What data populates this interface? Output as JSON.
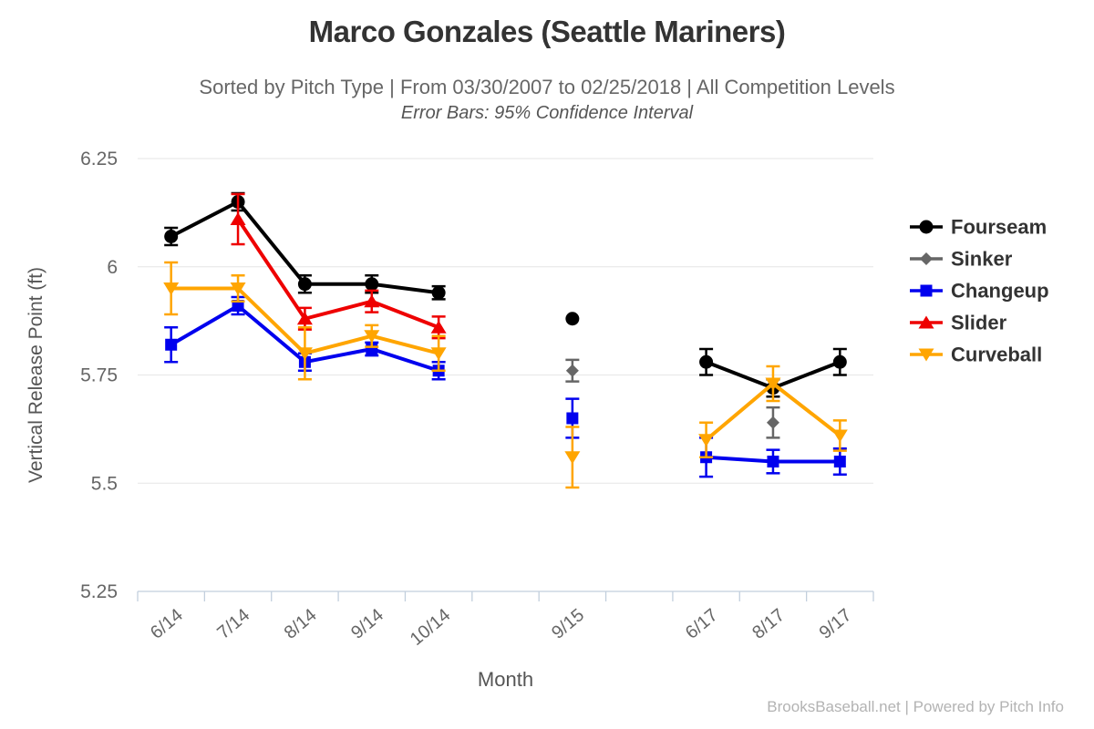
{
  "footer": {
    "credit": "BrooksBaseball.net | Powered by Pitch Info"
  },
  "chart_data": {
    "type": "line",
    "title": "Marco Gonzales (Seattle Mariners)",
    "subtitle": "Sorted by Pitch Type | From 03/30/2007 to 02/25/2018 | All Competition Levels",
    "note": "Error Bars: 95% Confidence Interval",
    "xlabel": "Month",
    "ylabel": "Vertical Release Point (ft)",
    "ylim": [
      5.25,
      6.25
    ],
    "yticks": [
      6.25,
      6.0,
      5.75,
      5.5,
      5.25
    ],
    "ytick_labels": [
      "6.25",
      "6",
      "5.75",
      "5.5",
      "5.25"
    ],
    "categories": [
      "6/14",
      "7/14",
      "8/14",
      "9/14",
      "10/14",
      "",
      "9/15",
      "",
      "6/17",
      "8/17",
      "9/17"
    ],
    "grid": "horizontal",
    "grid_color": "#e6e6e6",
    "axis_color": "#c2cfdd",
    "text_color": "#666666",
    "legend_position": "right",
    "error_bars": "95% Confidence Interval",
    "series": [
      {
        "name": "Fourseam",
        "color": "#000000",
        "marker": "circle",
        "points": [
          {
            "cat": "6/14",
            "y": 6.07,
            "err": 0.02
          },
          {
            "cat": "7/14",
            "y": 6.15,
            "err": 0.02
          },
          {
            "cat": "8/14",
            "y": 5.96,
            "err": 0.02
          },
          {
            "cat": "9/14",
            "y": 5.96,
            "err": 0.02
          },
          {
            "cat": "10/14",
            "y": 5.94,
            "err": 0.015
          },
          {
            "cat": "9/15",
            "y": 5.88,
            "err": 0
          },
          {
            "cat": "6/17",
            "y": 5.78,
            "err": 0.03
          },
          {
            "cat": "8/17",
            "y": 5.72,
            "err": 0.02
          },
          {
            "cat": "9/17",
            "y": 5.78,
            "err": 0.03
          }
        ]
      },
      {
        "name": "Sinker",
        "color": "#666666",
        "marker": "diamond",
        "points": [
          {
            "cat": "9/15",
            "y": 5.76,
            "err": 0.025
          },
          {
            "cat": "8/17",
            "y": 5.64,
            "err": 0.035
          }
        ]
      },
      {
        "name": "Changeup",
        "color": "#0000ee",
        "marker": "square",
        "points": [
          {
            "cat": "6/14",
            "y": 5.82,
            "err": 0.04
          },
          {
            "cat": "7/14",
            "y": 5.91,
            "err": 0.02
          },
          {
            "cat": "8/14",
            "y": 5.78,
            "err": 0.02
          },
          {
            "cat": "9/14",
            "y": 5.81,
            "err": 0.015
          },
          {
            "cat": "10/14",
            "y": 5.76,
            "err": 0.02
          },
          {
            "cat": "9/15",
            "y": 5.65,
            "err": 0.045
          },
          {
            "cat": "6/17",
            "y": 5.56,
            "err": 0.045
          },
          {
            "cat": "8/17",
            "y": 5.55,
            "err": 0.027
          },
          {
            "cat": "9/17",
            "y": 5.55,
            "err": 0.03
          }
        ]
      },
      {
        "name": "Slider",
        "color": "#ee0000",
        "marker": "triangle-up",
        "points": [
          {
            "cat": "7/14",
            "y": 6.11,
            "err": 0.058
          },
          {
            "cat": "8/14",
            "y": 5.88,
            "err": 0.025
          },
          {
            "cat": "9/14",
            "y": 5.92,
            "err": 0.025
          },
          {
            "cat": "10/14",
            "y": 5.86,
            "err": 0.025
          }
        ]
      },
      {
        "name": "Curveball",
        "color": "#ffa500",
        "marker": "triangle-down",
        "points": [
          {
            "cat": "6/14",
            "y": 5.95,
            "err": 0.06
          },
          {
            "cat": "7/14",
            "y": 5.95,
            "err": 0.03
          },
          {
            "cat": "8/14",
            "y": 5.8,
            "err": 0.06
          },
          {
            "cat": "9/14",
            "y": 5.84,
            "err": 0.025
          },
          {
            "cat": "10/14",
            "y": 5.8,
            "err": 0.04
          },
          {
            "cat": "9/15",
            "y": 5.56,
            "err": 0.07
          },
          {
            "cat": "6/17",
            "y": 5.6,
            "err": 0.04
          },
          {
            "cat": "8/17",
            "y": 5.73,
            "err": 0.04
          },
          {
            "cat": "9/17",
            "y": 5.61,
            "err": 0.035
          }
        ]
      }
    ]
  }
}
